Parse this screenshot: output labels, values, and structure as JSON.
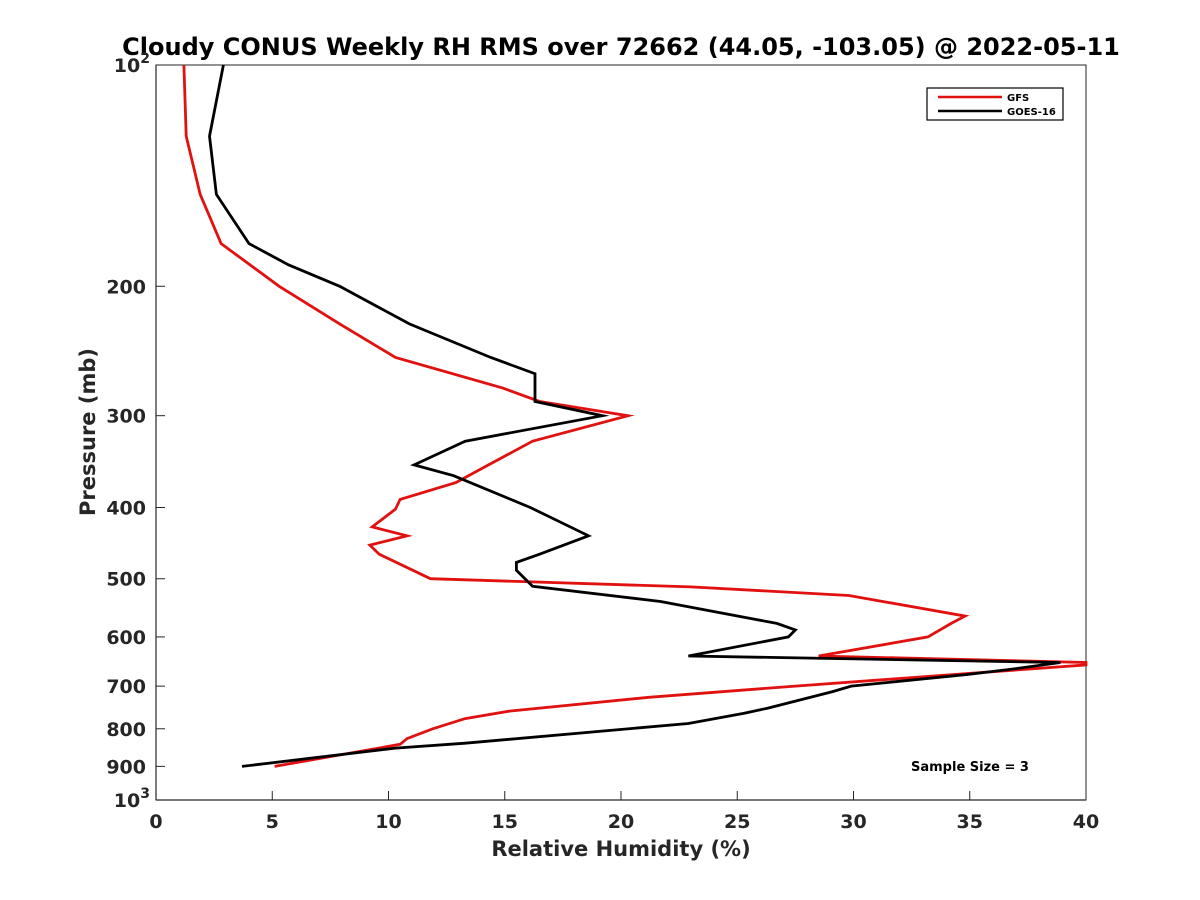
{
  "chart_data": {
    "type": "line",
    "orientation": "profile (x = value, y = pressure)",
    "title": "Cloudy CONUS Weekly RH RMS over 72662 (44.05, -103.05) @ 2022-05-11",
    "xlabel": "Relative Humidity (%)",
    "ylabel": "Pressure (mb)",
    "xlim": [
      0,
      40
    ],
    "ylim": [
      100,
      1000
    ],
    "y_scale": "log",
    "y_reversed": true,
    "grid": false,
    "x_ticks": [
      "0",
      "5",
      "10",
      "15",
      "20",
      "25",
      "30",
      "35",
      "40"
    ],
    "y_ticks": [
      {
        "value": 100,
        "label": "10",
        "sup": "2"
      },
      {
        "value": 200,
        "label": "200",
        "sup": ""
      },
      {
        "value": 300,
        "label": "300",
        "sup": ""
      },
      {
        "value": 400,
        "label": "400",
        "sup": ""
      },
      {
        "value": 500,
        "label": "500",
        "sup": ""
      },
      {
        "value": 600,
        "label": "600",
        "sup": ""
      },
      {
        "value": 700,
        "label": "700",
        "sup": ""
      },
      {
        "value": 800,
        "label": "800",
        "sup": ""
      },
      {
        "value": 900,
        "label": "900",
        "sup": ""
      },
      {
        "value": 1000,
        "label": "10",
        "sup": "3"
      }
    ],
    "legend_position": "top-right",
    "annotation": "Sample Size = 3",
    "series": [
      {
        "name": "GFS",
        "color": "#e0110f",
        "points": [
          [
            1.2,
            100
          ],
          [
            1.3,
            125
          ],
          [
            1.9,
            150
          ],
          [
            2.8,
            175
          ],
          [
            5.3,
            200
          ],
          [
            7.9,
            225
          ],
          [
            10.3,
            250
          ],
          [
            14.9,
            275
          ],
          [
            16.5,
            287
          ],
          [
            20.3,
            300
          ],
          [
            16.2,
            325
          ],
          [
            14.3,
            350
          ],
          [
            12.9,
            370
          ],
          [
            10.5,
            390
          ],
          [
            10.3,
            402
          ],
          [
            9.3,
            425
          ],
          [
            10.8,
            437
          ],
          [
            9.2,
            450
          ],
          [
            9.6,
            463
          ],
          [
            11.8,
            500
          ],
          [
            23.0,
            513
          ],
          [
            29.8,
            527
          ],
          [
            34.8,
            562
          ],
          [
            34.2,
            575
          ],
          [
            33.2,
            600
          ],
          [
            28.5,
            637
          ],
          [
            40.0,
            650
          ],
          [
            40.0,
            655
          ],
          [
            27.5,
            700
          ],
          [
            21.2,
            725
          ],
          [
            15.2,
            757
          ],
          [
            13.3,
            775
          ],
          [
            11.9,
            800
          ],
          [
            10.8,
            825
          ],
          [
            10.5,
            840
          ],
          [
            5.1,
            900
          ]
        ]
      },
      {
        "name": "GOES-16",
        "color": "#000000",
        "points": [
          [
            2.9,
            100
          ],
          [
            2.3,
            125
          ],
          [
            2.6,
            150
          ],
          [
            4.0,
            175
          ],
          [
            5.7,
            187
          ],
          [
            7.9,
            200
          ],
          [
            10.9,
            225
          ],
          [
            14.4,
            250
          ],
          [
            16.3,
            263
          ],
          [
            16.3,
            287
          ],
          [
            19.2,
            300
          ],
          [
            13.3,
            325
          ],
          [
            11.1,
            350
          ],
          [
            12.8,
            362
          ],
          [
            16.1,
            400
          ],
          [
            18.6,
            437
          ],
          [
            16.5,
            463
          ],
          [
            15.5,
            475
          ],
          [
            15.5,
            487
          ],
          [
            16.2,
            512
          ],
          [
            21.7,
            537
          ],
          [
            26.7,
            575
          ],
          [
            27.5,
            587
          ],
          [
            27.2,
            600
          ],
          [
            22.9,
            637
          ],
          [
            38.9,
            650
          ],
          [
            37.1,
            662
          ],
          [
            34.9,
            675
          ],
          [
            29.9,
            700
          ],
          [
            29.1,
            712
          ],
          [
            26.3,
            750
          ],
          [
            25.3,
            762
          ],
          [
            22.9,
            787
          ],
          [
            13.3,
            837
          ],
          [
            10.3,
            850
          ],
          [
            3.7,
            900
          ]
        ]
      }
    ]
  }
}
